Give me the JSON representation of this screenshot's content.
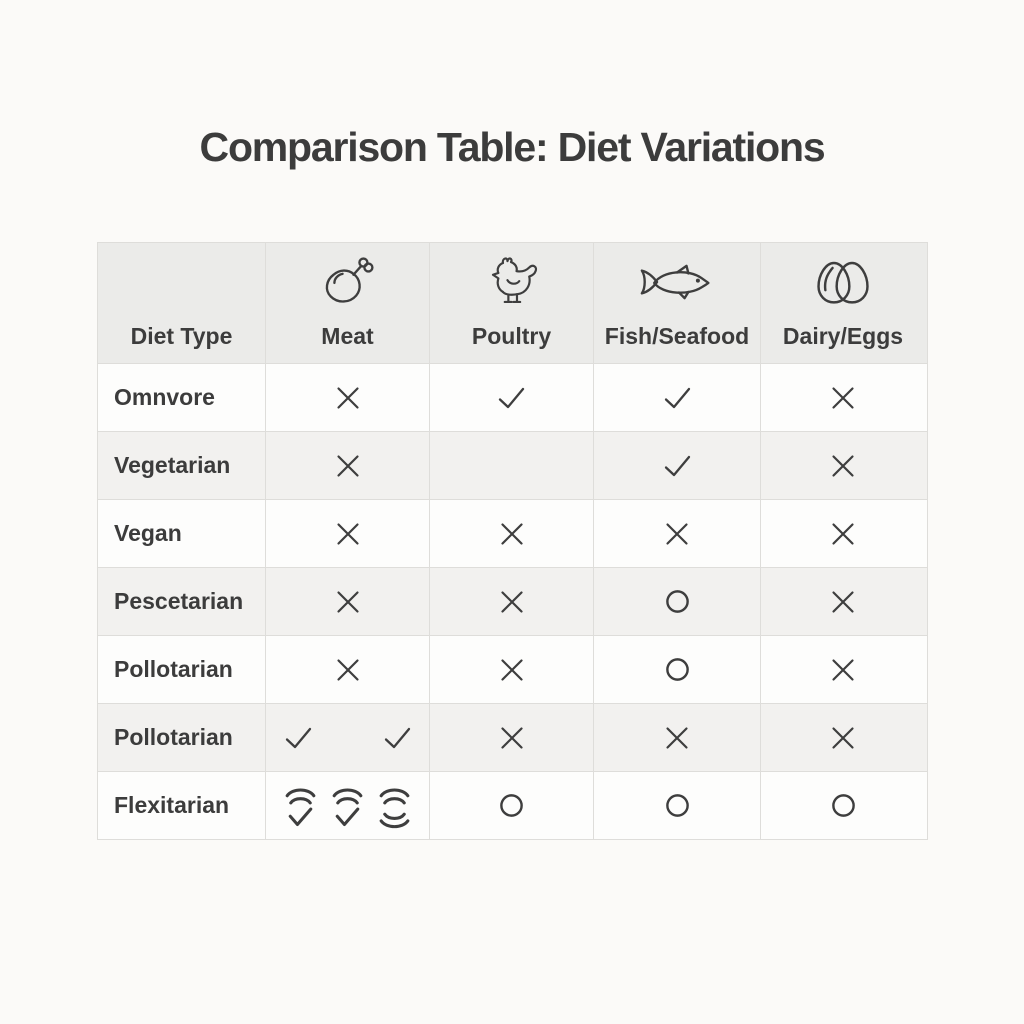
{
  "chart_data": {
    "type": "table",
    "title": "Comparison Table: Diet Variations",
    "columns": [
      {
        "label": "Diet Type",
        "icon": null
      },
      {
        "label": "Meat",
        "icon": "drumstick-icon"
      },
      {
        "label": "Poultry",
        "icon": "chicken-icon"
      },
      {
        "label": "Fish/Seafood",
        "icon": "fish-icon"
      },
      {
        "label": "Dairy/Eggs",
        "icon": "eggs-icon"
      }
    ],
    "rows": [
      {
        "label": "Omnvore",
        "cells": [
          [
            "x"
          ],
          [
            "check"
          ],
          [
            "check"
          ],
          [
            "x"
          ]
        ]
      },
      {
        "label": "Vegetarian",
        "cells": [
          [
            "x"
          ],
          [],
          [
            "check"
          ],
          [
            "x"
          ]
        ]
      },
      {
        "label": "Vegan",
        "cells": [
          [
            "x"
          ],
          [
            "x"
          ],
          [
            "x"
          ],
          [
            "x"
          ]
        ]
      },
      {
        "label": "Pescetarian",
        "cells": [
          [
            "x"
          ],
          [
            "x"
          ],
          [
            "circle"
          ],
          [
            "x"
          ]
        ]
      },
      {
        "label": "Pollotarian",
        "cells": [
          [
            "x"
          ],
          [
            "x"
          ],
          [
            "circle"
          ],
          [
            "x"
          ]
        ]
      },
      {
        "label": "Pollotarian",
        "cells": [
          [
            "check",
            "check"
          ],
          [
            "x"
          ],
          [
            "x"
          ],
          [
            "x"
          ]
        ]
      },
      {
        "label": "Flexitarian",
        "cells": [
          [
            "wave-check",
            "wave-check",
            "wave-wave"
          ],
          [
            "circle"
          ],
          [
            "circle"
          ],
          [
            "circle"
          ]
        ]
      }
    ]
  },
  "colors": {
    "page_bg": "#fbfaf8",
    "header_bg": "#ebebe9",
    "stripe_bg": "#f2f1ef",
    "row_bg": "#fdfdfc",
    "border": "#deddda",
    "text": "#3c3c3c",
    "stroke": "#3e3e3e"
  }
}
